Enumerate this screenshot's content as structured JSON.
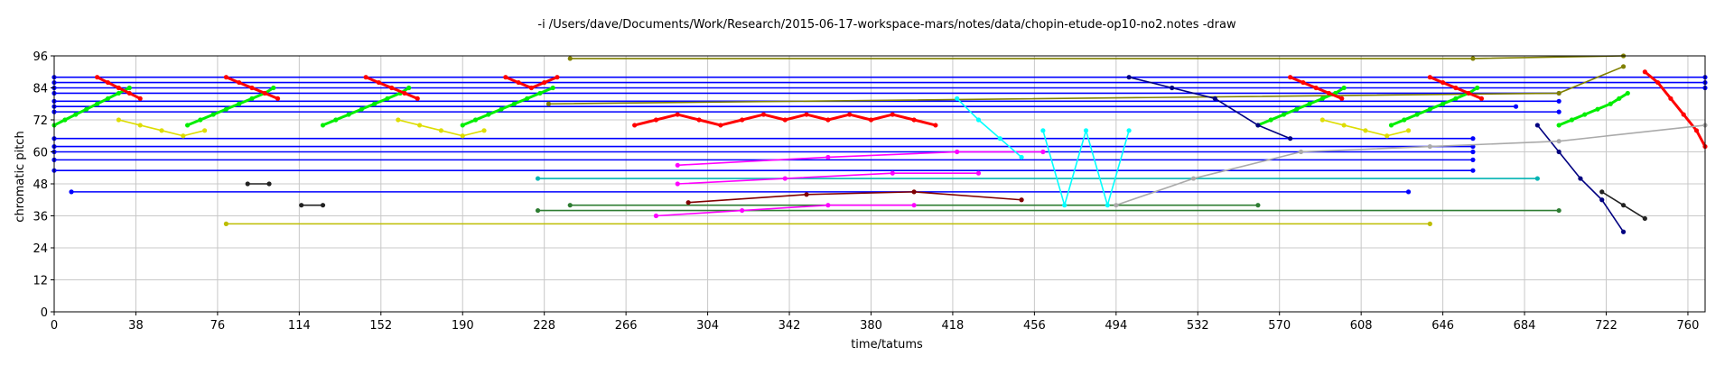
{
  "chart_data": {
    "type": "line",
    "title": "-i /Users/dave/Documents/Work/Research/2015-06-17-workspace-mars/notes/data/chopin-etude-op10-no2.notes -draw",
    "xlabel": "time/tatums",
    "ylabel": "chromatic pitch",
    "xlim": [
      0,
      768
    ],
    "ylim": [
      0,
      96
    ],
    "x_ticks": [
      0,
      38,
      76,
      114,
      152,
      190,
      228,
      266,
      304,
      342,
      380,
      418,
      456,
      494,
      532,
      570,
      608,
      646,
      684,
      722,
      760
    ],
    "y_ticks": [
      0,
      12,
      24,
      36,
      48,
      60,
      72,
      84,
      96
    ],
    "grid": true,
    "legend": "none",
    "series": [
      {
        "color": "#0000ff",
        "style": "line-points",
        "points": [
          [
            0,
            88
          ],
          [
            768,
            88
          ]
        ]
      },
      {
        "color": "#0000ff",
        "style": "line-points",
        "points": [
          [
            0,
            86
          ],
          [
            768,
            86
          ]
        ]
      },
      {
        "color": "#0000ff",
        "style": "line-points",
        "points": [
          [
            0,
            84
          ],
          [
            768,
            84
          ]
        ]
      },
      {
        "color": "#0000ff",
        "style": "line-points",
        "points": [
          [
            0,
            82
          ],
          [
            700,
            82
          ]
        ]
      },
      {
        "color": "#0000ff",
        "style": "line-points",
        "points": [
          [
            0,
            79
          ],
          [
            700,
            79
          ]
        ]
      },
      {
        "color": "#0000ff",
        "style": "line-points",
        "points": [
          [
            0,
            77
          ],
          [
            680,
            77
          ]
        ]
      },
      {
        "color": "#0000ff",
        "style": "line-points",
        "points": [
          [
            0,
            75
          ],
          [
            700,
            75
          ]
        ]
      },
      {
        "color": "#0000ff",
        "style": "line-points",
        "points": [
          [
            0,
            65
          ],
          [
            660,
            65
          ]
        ]
      },
      {
        "color": "#0000ff",
        "style": "line-points",
        "points": [
          [
            0,
            62
          ],
          [
            660,
            62
          ]
        ]
      },
      {
        "color": "#0000ff",
        "style": "line-points",
        "points": [
          [
            0,
            60
          ],
          [
            660,
            60
          ]
        ]
      },
      {
        "color": "#0000ff",
        "style": "line-points",
        "points": [
          [
            0,
            57
          ],
          [
            660,
            57
          ]
        ]
      },
      {
        "color": "#0000ff",
        "style": "line-points",
        "points": [
          [
            0,
            53
          ],
          [
            660,
            53
          ]
        ]
      },
      {
        "color": "#0000ff",
        "style": "line-points",
        "points": [
          [
            8,
            45
          ],
          [
            630,
            45
          ]
        ]
      },
      {
        "color": "#2e7d32",
        "style": "line-points",
        "points": [
          [
            225,
            38
          ],
          [
            700,
            38
          ]
        ]
      },
      {
        "color": "#2e7d32",
        "style": "line-points",
        "points": [
          [
            240,
            40
          ],
          [
            560,
            40
          ]
        ]
      },
      {
        "color": "#00b3b3",
        "style": "line-points",
        "points": [
          [
            225,
            50
          ],
          [
            690,
            50
          ]
        ]
      },
      {
        "color": "#bdbd00",
        "style": "line-points",
        "points": [
          [
            80,
            33
          ],
          [
            640,
            33
          ]
        ]
      },
      {
        "color": "#ff00ff",
        "style": "line-points",
        "points": [
          [
            280,
            36
          ],
          [
            320,
            38
          ],
          [
            360,
            40
          ],
          [
            400,
            40
          ]
        ]
      },
      {
        "color": "#ff00ff",
        "style": "line-points",
        "points": [
          [
            290,
            48
          ],
          [
            340,
            50
          ],
          [
            390,
            52
          ],
          [
            430,
            52
          ]
        ]
      },
      {
        "color": "#ff00ff",
        "style": "line-points",
        "points": [
          [
            290,
            55
          ],
          [
            360,
            58
          ],
          [
            420,
            60
          ],
          [
            460,
            60
          ]
        ]
      },
      {
        "color": "#800000",
        "style": "line-points",
        "points": [
          [
            295,
            41
          ],
          [
            350,
            44
          ],
          [
            400,
            45
          ],
          [
            450,
            42
          ]
        ]
      },
      {
        "color": "#808000",
        "style": "line-points",
        "points": [
          [
            240,
            95
          ],
          [
            660,
            95
          ],
          [
            730,
            96
          ]
        ]
      },
      {
        "color": "#808000",
        "style": "line-points",
        "points": [
          [
            230,
            78
          ],
          [
            700,
            82
          ],
          [
            730,
            92
          ]
        ]
      },
      {
        "color": "#00ee00",
        "style": "line-points",
        "points": [
          [
            0,
            70
          ],
          [
            5,
            72
          ],
          [
            10,
            74
          ],
          [
            15,
            76
          ],
          [
            20,
            78
          ],
          [
            25,
            80
          ],
          [
            30,
            82
          ],
          [
            35,
            84
          ]
        ]
      },
      {
        "color": "#00ee00",
        "style": "line-points",
        "points": [
          [
            62,
            70
          ],
          [
            68,
            72
          ],
          [
            74,
            74
          ],
          [
            80,
            76
          ],
          [
            86,
            78
          ],
          [
            92,
            80
          ],
          [
            98,
            82
          ],
          [
            102,
            84
          ]
        ]
      },
      {
        "color": "#00ee00",
        "style": "line-points",
        "points": [
          [
            125,
            70
          ],
          [
            131,
            72
          ],
          [
            137,
            74
          ],
          [
            143,
            76
          ],
          [
            149,
            78
          ],
          [
            155,
            80
          ],
          [
            161,
            82
          ],
          [
            165,
            84
          ]
        ]
      },
      {
        "color": "#00ee00",
        "style": "line-points",
        "points": [
          [
            190,
            70
          ],
          [
            196,
            72
          ],
          [
            202,
            74
          ],
          [
            208,
            76
          ],
          [
            214,
            78
          ],
          [
            220,
            80
          ],
          [
            226,
            82
          ],
          [
            232,
            84
          ]
        ]
      },
      {
        "color": "#00ee00",
        "style": "line-points",
        "points": [
          [
            560,
            70
          ],
          [
            566,
            72
          ],
          [
            572,
            74
          ],
          [
            578,
            76
          ],
          [
            584,
            78
          ],
          [
            590,
            80
          ],
          [
            596,
            82
          ],
          [
            600,
            84
          ]
        ]
      },
      {
        "color": "#00ee00",
        "style": "line-points",
        "points": [
          [
            622,
            70
          ],
          [
            628,
            72
          ],
          [
            634,
            74
          ],
          [
            640,
            76
          ],
          [
            646,
            78
          ],
          [
            652,
            80
          ],
          [
            658,
            82
          ],
          [
            662,
            84
          ]
        ]
      },
      {
        "color": "#00ee00",
        "style": "line-points",
        "points": [
          [
            700,
            70
          ],
          [
            706,
            72
          ],
          [
            712,
            74
          ],
          [
            718,
            76
          ],
          [
            724,
            78
          ],
          [
            728,
            80
          ],
          [
            732,
            82
          ]
        ]
      },
      {
        "color": "#ff0000",
        "style": "line-points",
        "points": [
          [
            20,
            88
          ],
          [
            25,
            86
          ],
          [
            30,
            84
          ],
          [
            35,
            82
          ],
          [
            40,
            80
          ]
        ]
      },
      {
        "color": "#ff0000",
        "style": "line-points",
        "points": [
          [
            80,
            88
          ],
          [
            86,
            86
          ],
          [
            92,
            84
          ],
          [
            98,
            82
          ],
          [
            104,
            80
          ]
        ]
      },
      {
        "color": "#ff0000",
        "style": "line-points",
        "points": [
          [
            145,
            88
          ],
          [
            151,
            86
          ],
          [
            157,
            84
          ],
          [
            163,
            82
          ],
          [
            169,
            80
          ]
        ]
      },
      {
        "color": "#ff0000",
        "style": "line-points",
        "points": [
          [
            210,
            88
          ],
          [
            216,
            86
          ],
          [
            222,
            84
          ],
          [
            228,
            86
          ],
          [
            234,
            88
          ]
        ]
      },
      {
        "color": "#ff0000",
        "style": "line-points",
        "points": [
          [
            270,
            70
          ],
          [
            280,
            72
          ],
          [
            290,
            74
          ],
          [
            300,
            72
          ],
          [
            310,
            70
          ],
          [
            320,
            72
          ],
          [
            330,
            74
          ],
          [
            340,
            72
          ],
          [
            350,
            74
          ],
          [
            360,
            72
          ],
          [
            370,
            74
          ],
          [
            380,
            72
          ],
          [
            390,
            74
          ],
          [
            400,
            72
          ],
          [
            410,
            70
          ]
        ]
      },
      {
        "color": "#ff0000",
        "style": "line-points",
        "points": [
          [
            575,
            88
          ],
          [
            581,
            86
          ],
          [
            587,
            84
          ],
          [
            593,
            82
          ],
          [
            599,
            80
          ]
        ]
      },
      {
        "color": "#ff0000",
        "style": "line-points",
        "points": [
          [
            640,
            88
          ],
          [
            646,
            86
          ],
          [
            652,
            84
          ],
          [
            658,
            82
          ],
          [
            664,
            80
          ]
        ]
      },
      {
        "color": "#ff0000",
        "style": "line-points",
        "points": [
          [
            740,
            90
          ],
          [
            746,
            86
          ],
          [
            752,
            80
          ],
          [
            758,
            74
          ],
          [
            764,
            68
          ],
          [
            768,
            62
          ]
        ]
      },
      {
        "color": "#00ffff",
        "style": "line-points",
        "points": [
          [
            420,
            80
          ],
          [
            430,
            72
          ],
          [
            440,
            65
          ],
          [
            450,
            58
          ]
        ]
      },
      {
        "color": "#00ffff",
        "style": "line-points",
        "points": [
          [
            460,
            68
          ],
          [
            470,
            40
          ],
          [
            480,
            68
          ],
          [
            490,
            40
          ],
          [
            500,
            68
          ]
        ]
      },
      {
        "color": "#000080",
        "style": "line-points",
        "points": [
          [
            500,
            88
          ],
          [
            520,
            84
          ],
          [
            540,
            80
          ],
          [
            560,
            70
          ],
          [
            575,
            65
          ]
        ]
      },
      {
        "color": "#000080",
        "style": "line-points",
        "points": [
          [
            690,
            70
          ],
          [
            700,
            60
          ],
          [
            710,
            50
          ],
          [
            720,
            42
          ],
          [
            730,
            30
          ]
        ]
      },
      {
        "color": "#aaaaaa",
        "style": "line-points",
        "points": [
          [
            494,
            40
          ],
          [
            530,
            50
          ],
          [
            580,
            60
          ],
          [
            640,
            62
          ],
          [
            700,
            64
          ],
          [
            768,
            70
          ]
        ]
      },
      {
        "color": "#dddd00",
        "style": "line-points",
        "points": [
          [
            30,
            72
          ],
          [
            40,
            70
          ],
          [
            50,
            68
          ],
          [
            60,
            66
          ],
          [
            70,
            68
          ]
        ]
      },
      {
        "color": "#dddd00",
        "style": "line-points",
        "points": [
          [
            160,
            72
          ],
          [
            170,
            70
          ],
          [
            180,
            68
          ],
          [
            190,
            66
          ],
          [
            200,
            68
          ]
        ]
      },
      {
        "color": "#dddd00",
        "style": "line-points",
        "points": [
          [
            590,
            72
          ],
          [
            600,
            70
          ],
          [
            610,
            68
          ],
          [
            620,
            66
          ],
          [
            630,
            68
          ]
        ]
      },
      {
        "color": "#222222",
        "style": "line-points",
        "points": [
          [
            90,
            48
          ],
          [
            100,
            48
          ]
        ]
      },
      {
        "color": "#222222",
        "style": "line-points",
        "points": [
          [
            115,
            40
          ],
          [
            125,
            40
          ]
        ]
      },
      {
        "color": "#222222",
        "style": "line-points",
        "points": [
          [
            720,
            45
          ],
          [
            730,
            40
          ],
          [
            740,
            35
          ]
        ]
      }
    ]
  }
}
